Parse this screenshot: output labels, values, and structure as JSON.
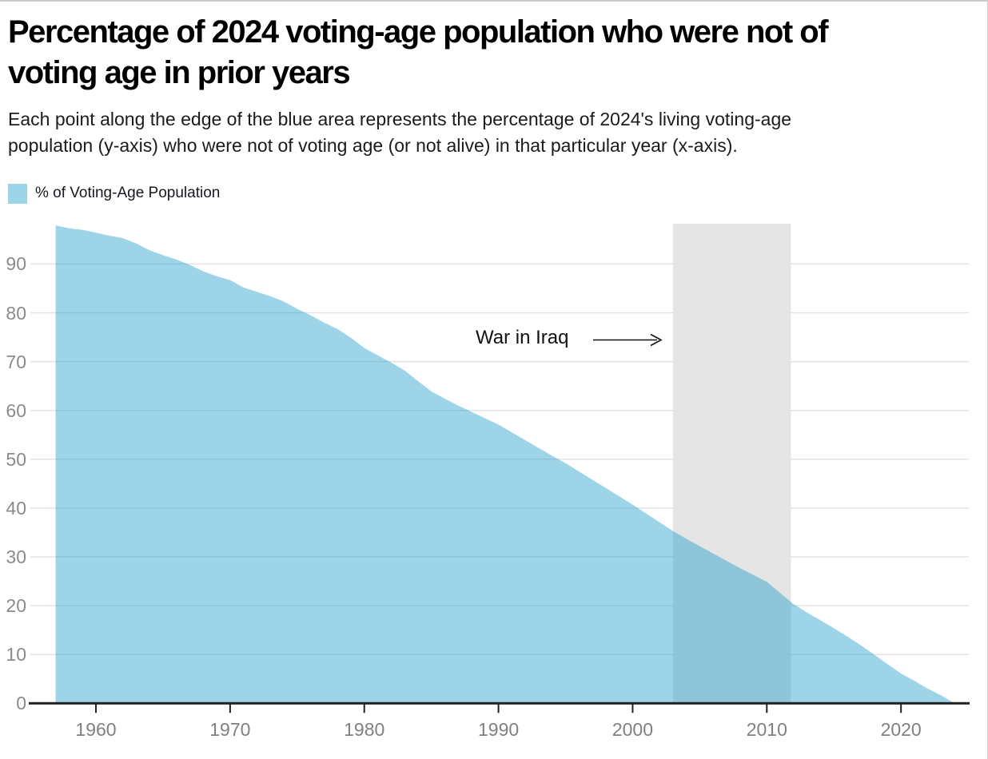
{
  "title": {
    "line1": "Percentage of 2024 voting-age population who were not of",
    "line2": "voting age in prior years"
  },
  "subtitle": {
    "line1": "Each point along the edge of the blue area represents the percentage of 2024's living voting-age",
    "line2": "population (y-axis) who were not of voting age (or not alive) in that particular year (x-axis)."
  },
  "legend": {
    "label": "% of Voting-Age Population",
    "swatch_color": "#9ed4e7"
  },
  "annotation": {
    "label": "War in Iraq"
  },
  "colors": {
    "area_fill": "rgba(24,152,198,0.42)",
    "shaded_band": "#e5e5e5",
    "gridline": "#e3e3e3",
    "axis_line": "#222222",
    "tick_label": "#808080"
  },
  "chart_data": {
    "type": "area",
    "title": "Percentage of 2024 voting-age population who were not of voting age in prior years",
    "series_name": "% of Voting-Age Population",
    "xlabel": "",
    "ylabel": "",
    "grid": true,
    "legend_position": "top-left",
    "xlim": [
      1957,
      2024
    ],
    "ylim": [
      0,
      98.3
    ],
    "x_ticks": [
      1960,
      1970,
      1980,
      1990,
      2000,
      2010,
      2020
    ],
    "y_ticks": [
      0,
      10,
      20,
      30,
      40,
      50,
      60,
      70,
      80,
      90
    ],
    "shaded_region": {
      "label": "War in Iraq",
      "start": 2003,
      "end": 2011.8,
      "color": "#e5e5e5"
    },
    "x": [
      1957,
      1958,
      1959,
      1960,
      1961,
      1962,
      1963,
      1964,
      1965,
      1966,
      1967,
      1968,
      1969,
      1970,
      1971,
      1972,
      1973,
      1974,
      1975,
      1976,
      1977,
      1978,
      1979,
      1980,
      1981,
      1982,
      1983,
      1984,
      1985,
      1986,
      1987,
      1988,
      1989,
      1990,
      1991,
      1992,
      1993,
      1994,
      1995,
      1996,
      1997,
      1998,
      1999,
      2000,
      2001,
      2002,
      2003,
      2004,
      2005,
      2006,
      2007,
      2008,
      2009,
      2010,
      2011,
      2012,
      2013,
      2014,
      2015,
      2016,
      2017,
      2018,
      2019,
      2020,
      2021,
      2022,
      2023,
      2024
    ],
    "values": [
      97.9,
      97.3,
      97.0,
      96.4,
      95.8,
      95.3,
      94.2,
      92.8,
      91.8,
      90.9,
      89.8,
      88.5,
      87.5,
      86.7,
      85.2,
      84.3,
      83.4,
      82.3,
      80.8,
      79.5,
      78.0,
      76.7,
      74.9,
      72.8,
      71.3,
      69.8,
      68.2,
      66.0,
      63.9,
      62.4,
      61.0,
      59.7,
      58.4,
      57.1,
      55.5,
      53.9,
      52.3,
      50.7,
      49.2,
      47.5,
      45.8,
      44.1,
      42.4,
      40.7,
      38.9,
      37.1,
      35.3,
      33.7,
      32.2,
      30.7,
      29.2,
      27.7,
      26.3,
      24.9,
      22.6,
      20.3,
      18.6,
      17.0,
      15.4,
      13.7,
      11.9,
      10.0,
      8.0,
      6.1,
      4.6,
      3.0,
      1.6,
      0.0
    ]
  }
}
